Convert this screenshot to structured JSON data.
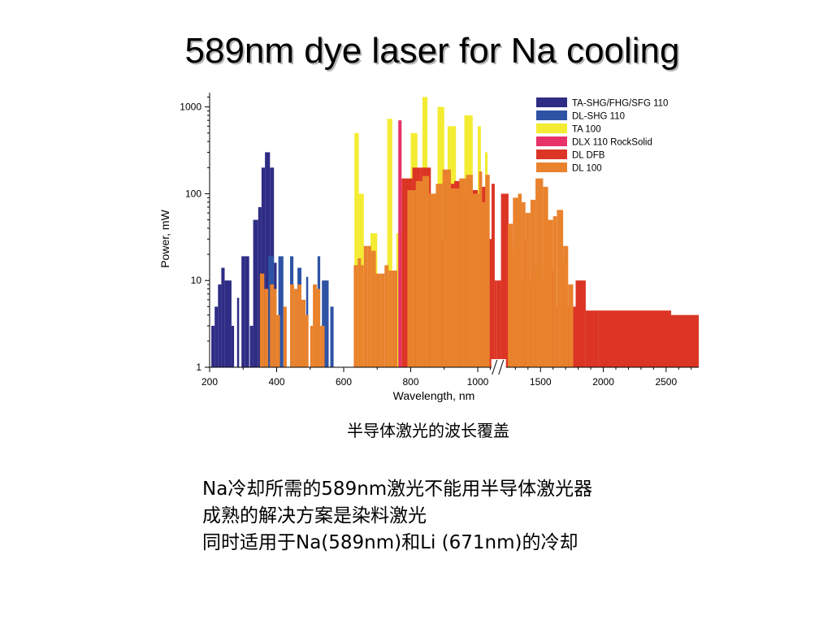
{
  "page": {
    "title": "589nm dye laser for Na cooling",
    "caption": "半导体激光的波长覆盖",
    "body_lines": [
      "Na冷却所需的589nm激光不能用半导体激光器",
      "成熟的解决方案是染料激光",
      "同时适用于Na(589nm)和Li (671nm)的冷却"
    ]
  },
  "chart_data": {
    "type": "bar",
    "xlabel": "Wavelength, nm",
    "ylabel": "Power, mW",
    "yscale": "log",
    "ylim": [
      1,
      1400
    ],
    "yticks": [
      "1",
      "10",
      "100",
      "1000"
    ],
    "xticks": [
      "200",
      "400",
      "600",
      "800",
      "1000",
      "1500",
      "2000",
      "2500"
    ],
    "axis_break": "between 1000 and 1500",
    "legend_position": "top-right",
    "series": [
      {
        "name": "TA-SHG/FHG/SFG 110",
        "color": "#2e2c84",
        "bars": [
          [
            205,
            215,
            3
          ],
          [
            215,
            225,
            5
          ],
          [
            225,
            235,
            9
          ],
          [
            235,
            245,
            14
          ],
          [
            245,
            265,
            10
          ],
          [
            265,
            273,
            3
          ],
          [
            282,
            288,
            6.3
          ],
          [
            295,
            305,
            19
          ],
          [
            305,
            318,
            19
          ],
          [
            320,
            330,
            3
          ],
          [
            330,
            345,
            50
          ],
          [
            345,
            355,
            70
          ],
          [
            355,
            365,
            200
          ],
          [
            365,
            380,
            300
          ],
          [
            380,
            392,
            200
          ],
          [
            392,
            400,
            16
          ],
          [
            440,
            448,
            13
          ]
        ]
      },
      {
        "name": "DL-SHG 110",
        "color": "#2e53a5",
        "bars": [
          [
            375,
            392,
            19
          ],
          [
            405,
            420,
            19
          ],
          [
            440,
            450,
            19
          ],
          [
            462,
            474,
            14
          ],
          [
            488,
            494,
            11
          ],
          [
            522,
            530,
            19
          ],
          [
            535,
            555,
            10
          ],
          [
            560,
            570,
            5
          ]
        ]
      },
      {
        "name": "TA 100",
        "color": "#f3ec33",
        "bars": [
          [
            632,
            645,
            500
          ],
          [
            645,
            660,
            100
          ],
          [
            680,
            700,
            35
          ],
          [
            730,
            745,
            730
          ],
          [
            757,
            773,
            35
          ],
          [
            800,
            820,
            500
          ],
          [
            835,
            850,
            1300
          ],
          [
            880,
            900,
            1000
          ],
          [
            910,
            935,
            600
          ],
          [
            960,
            985,
            800
          ],
          [
            1000,
            1025,
            600
          ],
          [
            1058,
            1078,
            300
          ]
        ]
      },
      {
        "name": "DLX 110 RockSolid",
        "color": "#e63268",
        "bars": [
          [
            763,
            773,
            700
          ]
        ]
      },
      {
        "name": "DL DFB",
        "color": "#dc3525",
        "bars": [
          [
            773,
            805,
            150
          ],
          [
            805,
            830,
            200
          ],
          [
            830,
            860,
            200
          ],
          [
            860,
            900,
            30
          ],
          [
            900,
            930,
            130
          ],
          [
            930,
            960,
            140
          ],
          [
            960,
            985,
            100
          ],
          [
            985,
            1000,
            110
          ],
          [
            1000,
            1025,
            90
          ],
          [
            1025,
            1060,
            120
          ],
          [
            1060,
            1110,
            30
          ],
          [
            1110,
            1135,
            130
          ],
          [
            1135,
            1150,
            10
          ],
          [
            1150,
            1185,
            10
          ],
          [
            1185,
            1245,
            100
          ],
          [
            1245,
            1265,
            18
          ],
          [
            1265,
            1280,
            20
          ],
          [
            1280,
            1310,
            25
          ],
          [
            1310,
            1330,
            12
          ],
          [
            1330,
            1360,
            10
          ],
          [
            1360,
            1400,
            30
          ],
          [
            1400,
            1440,
            10
          ],
          [
            1440,
            1460,
            16
          ],
          [
            1460,
            1480,
            14
          ],
          [
            1480,
            1520,
            10
          ],
          [
            1520,
            1560,
            6
          ],
          [
            1560,
            1610,
            13
          ],
          [
            1610,
            1640,
            5
          ],
          [
            1640,
            1700,
            16
          ],
          [
            1700,
            1780,
            5
          ],
          [
            1780,
            1860,
            10
          ],
          [
            1860,
            1960,
            4.5
          ],
          [
            1960,
            2200,
            4.5
          ],
          [
            2200,
            2540,
            4.5
          ],
          [
            2540,
            2760,
            4
          ]
        ]
      },
      {
        "name": "DL 100",
        "color": "#e9822d",
        "bars": [
          [
            350,
            363,
            12
          ],
          [
            363,
            375,
            8
          ],
          [
            380,
            392,
            9
          ],
          [
            392,
            400,
            8
          ],
          [
            400,
            410,
            4
          ],
          [
            420,
            430,
            5
          ],
          [
            440,
            452,
            9
          ],
          [
            452,
            463,
            8
          ],
          [
            463,
            474,
            9
          ],
          [
            474,
            486,
            6
          ],
          [
            486,
            495,
            4
          ],
          [
            500,
            508,
            3
          ],
          [
            508,
            520,
            9
          ],
          [
            520,
            530,
            8
          ],
          [
            530,
            543,
            3
          ],
          [
            630,
            642,
            15
          ],
          [
            642,
            652,
            18
          ],
          [
            652,
            660,
            15
          ],
          [
            660,
            672,
            25
          ],
          [
            672,
            682,
            25
          ],
          [
            682,
            696,
            22
          ],
          [
            696,
            710,
            12
          ],
          [
            710,
            722,
            12
          ],
          [
            722,
            734,
            15
          ],
          [
            734,
            745,
            13
          ],
          [
            745,
            760,
            13
          ],
          [
            790,
            815,
            110
          ],
          [
            815,
            835,
            140
          ],
          [
            835,
            855,
            160
          ],
          [
            855,
            875,
            100
          ],
          [
            875,
            895,
            130
          ],
          [
            895,
            920,
            190
          ],
          [
            920,
            945,
            115
          ],
          [
            945,
            965,
            150
          ],
          [
            965,
            985,
            165
          ],
          [
            985,
            1010,
            100
          ],
          [
            1010,
            1035,
            180
          ],
          [
            1035,
            1060,
            80
          ],
          [
            1060,
            1085,
            165
          ],
          [
            1080,
            1095,
            165
          ],
          [
            1240,
            1280,
            45
          ],
          [
            1280,
            1320,
            90
          ],
          [
            1320,
            1350,
            100
          ],
          [
            1350,
            1380,
            80
          ],
          [
            1380,
            1420,
            60
          ],
          [
            1420,
            1460,
            85
          ],
          [
            1460,
            1520,
            150
          ],
          [
            1520,
            1560,
            120
          ],
          [
            1560,
            1600,
            50
          ],
          [
            1600,
            1630,
            55
          ],
          [
            1630,
            1680,
            65
          ],
          [
            1680,
            1720,
            25
          ],
          [
            1720,
            1760,
            9
          ]
        ]
      }
    ]
  }
}
